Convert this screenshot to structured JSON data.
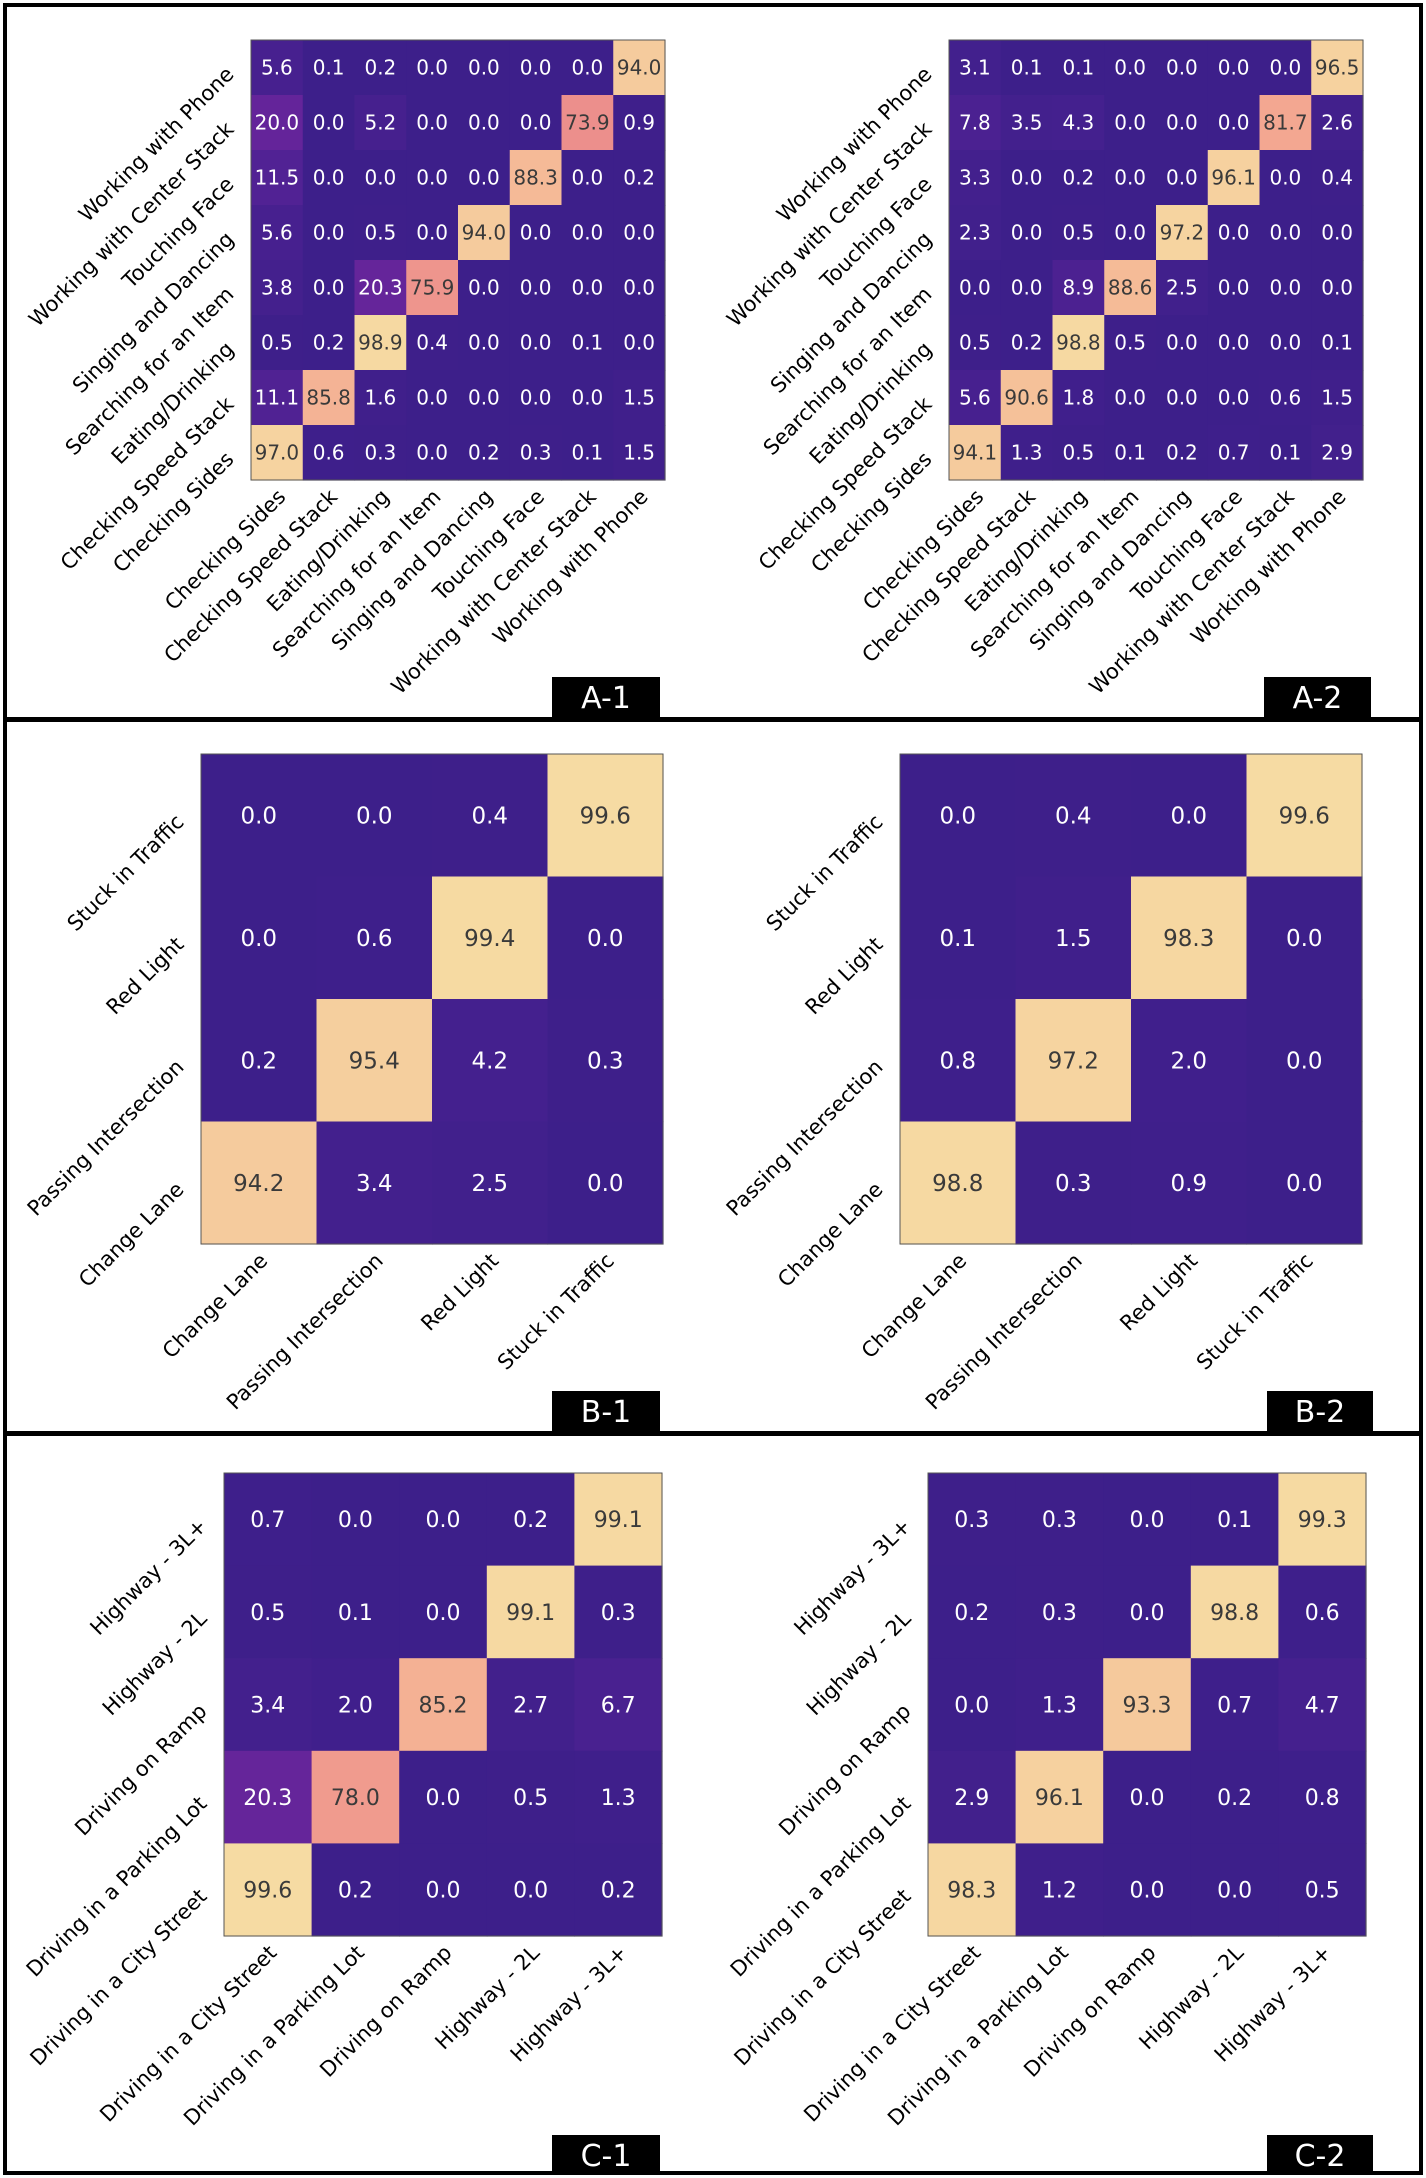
{
  "colors": {
    "stops": [
      "#3d1f8a",
      "#5a2398",
      "#8e2aa0",
      "#c0499c",
      "#e67887",
      "#f4ac92",
      "#f6dca3"
    ],
    "dark_text": "#3a3a3a",
    "light_text": "#ffffff",
    "tag_bg": "#000000",
    "tag_text": "#ffffff"
  },
  "chart_data": [
    {
      "type": "heatmap",
      "panel_tag": "A-1",
      "x_categories": [
        "Checking Sides",
        "Checking Speed Stack",
        "Eating/Drinking",
        "Searching for an Item",
        "Singing and Dancing",
        "Touching Face",
        "Working with Center Stack",
        "Working with Phone"
      ],
      "y_categories": [
        "Working with Phone",
        "Working with Center Stack",
        "Touching Face",
        "Singing and Dancing",
        "Searching for an Item",
        "Eating/Drinking",
        "Checking Speed Stack",
        "Checking Sides"
      ],
      "values": [
        [
          "5.6",
          "0.1",
          "0.2",
          "0.0",
          "0.0",
          "0.0",
          "0.0",
          "94.0"
        ],
        [
          "20.0",
          "0.0",
          "5.2",
          "0.0",
          "0.0",
          "0.0",
          "73.9",
          "0.9"
        ],
        [
          "11.5",
          "0.0",
          "0.0",
          "0.0",
          "0.0",
          "88.3",
          "0.0",
          "0.2"
        ],
        [
          "5.6",
          "0.0",
          "0.5",
          "0.0",
          "94.0",
          "0.0",
          "0.0",
          "0.0"
        ],
        [
          "3.8",
          "0.0",
          "20.3",
          "75.9",
          "0.0",
          "0.0",
          "0.0",
          "0.0"
        ],
        [
          "0.5",
          "0.2",
          "98.9",
          "0.4",
          "0.0",
          "0.0",
          "0.1",
          "0.0"
        ],
        [
          "11.1",
          "85.8",
          "1.6",
          "0.0",
          "0.0",
          "0.0",
          "0.0",
          "1.5"
        ],
        [
          "97.0",
          "0.6",
          "0.3",
          "0.0",
          "0.2",
          "0.3",
          "0.1",
          "1.5"
        ]
      ],
      "range": [
        0,
        100
      ]
    },
    {
      "type": "heatmap",
      "panel_tag": "A-2",
      "x_categories": [
        "Checking Sides",
        "Checking Speed Stack",
        "Eating/Drinking",
        "Searching for an Item",
        "Singing and Dancing",
        "Touching Face",
        "Working with Center Stack",
        "Working with Phone"
      ],
      "y_categories": [
        "Working with Phone",
        "Working with Center Stack",
        "Touching Face",
        "Singing and Dancing",
        "Searching for an Item",
        "Eating/Drinking",
        "Checking Speed Stack",
        "Checking Sides"
      ],
      "values": [
        [
          "3.1",
          "0.1",
          "0.1",
          "0.0",
          "0.0",
          "0.0",
          "0.0",
          "96.5"
        ],
        [
          "7.8",
          "3.5",
          "4.3",
          "0.0",
          "0.0",
          "0.0",
          "81.7",
          "2.6"
        ],
        [
          "3.3",
          "0.0",
          "0.2",
          "0.0",
          "0.0",
          "96.1",
          "0.0",
          "0.4"
        ],
        [
          "2.3",
          "0.0",
          "0.5",
          "0.0",
          "97.2",
          "0.0",
          "0.0",
          "0.0"
        ],
        [
          "0.0",
          "0.0",
          "8.9",
          "88.6",
          "2.5",
          "0.0",
          "0.0",
          "0.0"
        ],
        [
          "0.5",
          "0.2",
          "98.8",
          "0.5",
          "0.0",
          "0.0",
          "0.0",
          "0.1"
        ],
        [
          "5.6",
          "90.6",
          "1.8",
          "0.0",
          "0.0",
          "0.0",
          "0.6",
          "1.5"
        ],
        [
          "94.1",
          "1.3",
          "0.5",
          "0.1",
          "0.2",
          "0.7",
          "0.1",
          "2.9"
        ]
      ],
      "range": [
        0,
        100
      ]
    },
    {
      "type": "heatmap",
      "panel_tag": "B-1",
      "x_categories": [
        "Change Lane",
        "Passing Intersection",
        "Red Light",
        "Stuck in Traffic"
      ],
      "y_categories": [
        "Stuck in Traffic",
        "Red Light",
        "Passing Intersection",
        "Change Lane"
      ],
      "values": [
        [
          "0.0",
          "0.0",
          "0.4",
          "99.6"
        ],
        [
          "0.0",
          "0.6",
          "99.4",
          "0.0"
        ],
        [
          "0.2",
          "95.4",
          "4.2",
          "0.3"
        ],
        [
          "94.2",
          "3.4",
          "2.5",
          "0.0"
        ]
      ],
      "range": [
        0,
        100
      ]
    },
    {
      "type": "heatmap",
      "panel_tag": "B-2",
      "x_categories": [
        "Change Lane",
        "Passing Intersection",
        "Red Light",
        "Stuck in Traffic"
      ],
      "y_categories": [
        "Stuck in Traffic",
        "Red Light",
        "Passing Intersection",
        "Change Lane"
      ],
      "values": [
        [
          "0.0",
          "0.4",
          "0.0",
          "99.6"
        ],
        [
          "0.1",
          "1.5",
          "98.3",
          "0.0"
        ],
        [
          "0.8",
          "97.2",
          "2.0",
          "0.0"
        ],
        [
          "98.8",
          "0.3",
          "0.9",
          "0.0"
        ]
      ],
      "range": [
        0,
        100
      ]
    },
    {
      "type": "heatmap",
      "panel_tag": "C-1",
      "x_categories": [
        "Driving in a City Street",
        "Driving in a Parking Lot",
        "Driving on Ramp",
        "Highway - 2L",
        "Highway - 3L+"
      ],
      "y_categories": [
        "Highway - 3L+",
        "Highway - 2L",
        "Driving on Ramp",
        "Driving in a Parking Lot",
        "Driving in a City Street"
      ],
      "values": [
        [
          "0.7",
          "0.0",
          "0.0",
          "0.2",
          "99.1"
        ],
        [
          "0.5",
          "0.1",
          "0.0",
          "99.1",
          "0.3"
        ],
        [
          "3.4",
          "2.0",
          "85.2",
          "2.7",
          "6.7"
        ],
        [
          "20.3",
          "78.0",
          "0.0",
          "0.5",
          "1.3"
        ],
        [
          "99.6",
          "0.2",
          "0.0",
          "0.0",
          "0.2"
        ]
      ],
      "range": [
        0,
        100
      ]
    },
    {
      "type": "heatmap",
      "panel_tag": "C-2",
      "x_categories": [
        "Driving in a City Street",
        "Driving in a Parking Lot",
        "Driving on Ramp",
        "Highway - 2L",
        "Highway - 3L+"
      ],
      "y_categories": [
        "Highway - 3L+",
        "Highway - 2L",
        "Driving on Ramp",
        "Driving in a Parking Lot",
        "Driving in a City Street"
      ],
      "values": [
        [
          "0.3",
          "0.3",
          "0.0",
          "0.1",
          "99.3"
        ],
        [
          "0.2",
          "0.3",
          "0.0",
          "98.8",
          "0.6"
        ],
        [
          "0.0",
          "1.3",
          "93.3",
          "0.7",
          "4.7"
        ],
        [
          "2.9",
          "96.1",
          "0.0",
          "0.2",
          "0.8"
        ],
        [
          "98.3",
          "1.2",
          "0.0",
          "0.0",
          "0.5"
        ]
      ],
      "range": [
        0,
        100
      ]
    }
  ]
}
